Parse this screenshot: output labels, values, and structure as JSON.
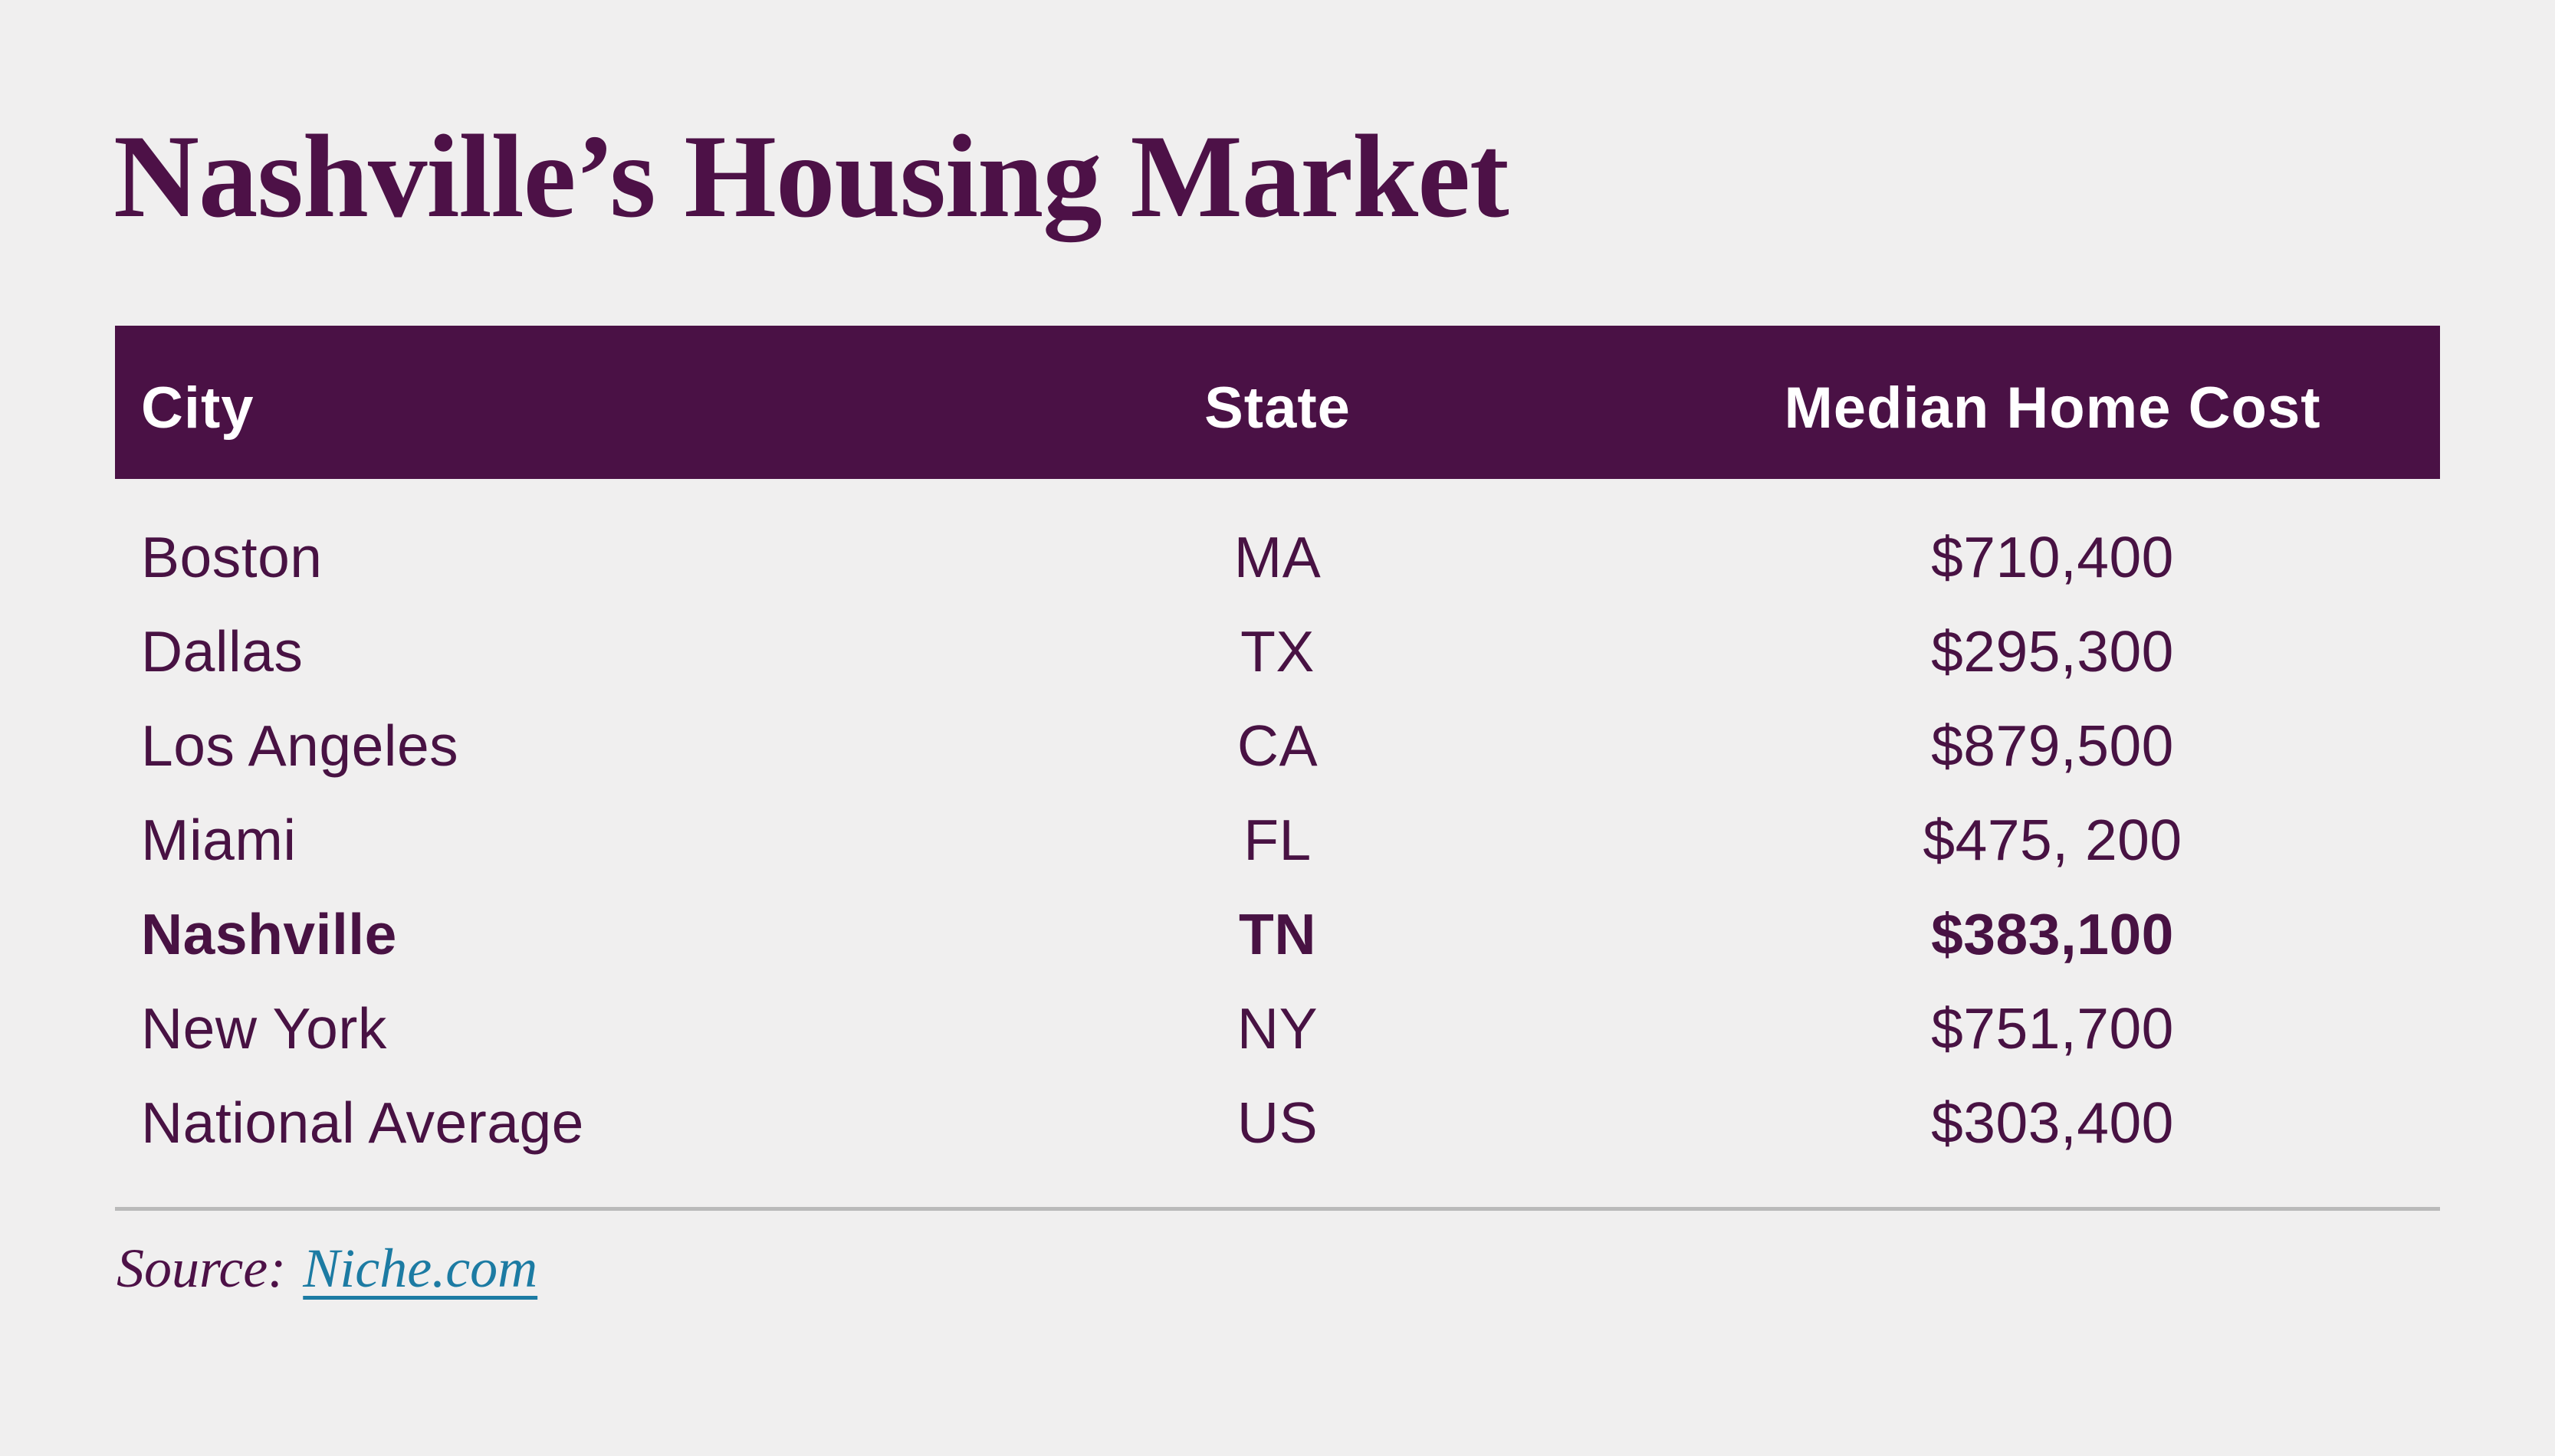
{
  "page": {
    "title": "Nashville’s Housing Market",
    "background_color": "#f0efef",
    "header_band_color": "#4a1145",
    "text_color": "#481243",
    "link_color": "#1c7ba3",
    "divider_color": "#bababa"
  },
  "table": {
    "columns": [
      "City",
      "State",
      "Median Home Cost"
    ],
    "rows": [
      {
        "city": "Boston",
        "state": "MA",
        "cost": "$710,400",
        "highlight": false
      },
      {
        "city": "Dallas",
        "state": "TX",
        "cost": "$295,300",
        "highlight": false
      },
      {
        "city": "Los Angeles",
        "state": "CA",
        "cost": "$879,500",
        "highlight": false
      },
      {
        "city": "Miami",
        "state": "FL",
        "cost": "$475, 200",
        "highlight": false
      },
      {
        "city": "Nashville",
        "state": "TN",
        "cost": "$383,100",
        "highlight": true
      },
      {
        "city": "New York",
        "state": "NY",
        "cost": "$751,700",
        "highlight": false
      },
      {
        "city": "National Average",
        "state": "US",
        "cost": "$303,400",
        "highlight": false
      }
    ]
  },
  "source": {
    "label": "Source:",
    "link_text": "Niche.com"
  },
  "chart_data": {
    "type": "table",
    "title": "Nashville’s Housing Market",
    "columns": [
      "City",
      "State",
      "Median Home Cost"
    ],
    "rows": [
      [
        "Boston",
        "MA",
        "$710,400"
      ],
      [
        "Dallas",
        "TX",
        "$295,300"
      ],
      [
        "Los Angeles",
        "CA",
        "$879,500"
      ],
      [
        "Miami",
        "FL",
        "$475, 200"
      ],
      [
        "Nashville",
        "TN",
        "$383,100"
      ],
      [
        "New York",
        "NY",
        "$751,700"
      ],
      [
        "National Average",
        "US",
        "$303,400"
      ]
    ],
    "median_home_cost_usd": [
      710400,
      295300,
      879500,
      475200,
      383100,
      751700,
      303400
    ],
    "highlighted_row": "Nashville",
    "source": "Niche.com"
  }
}
